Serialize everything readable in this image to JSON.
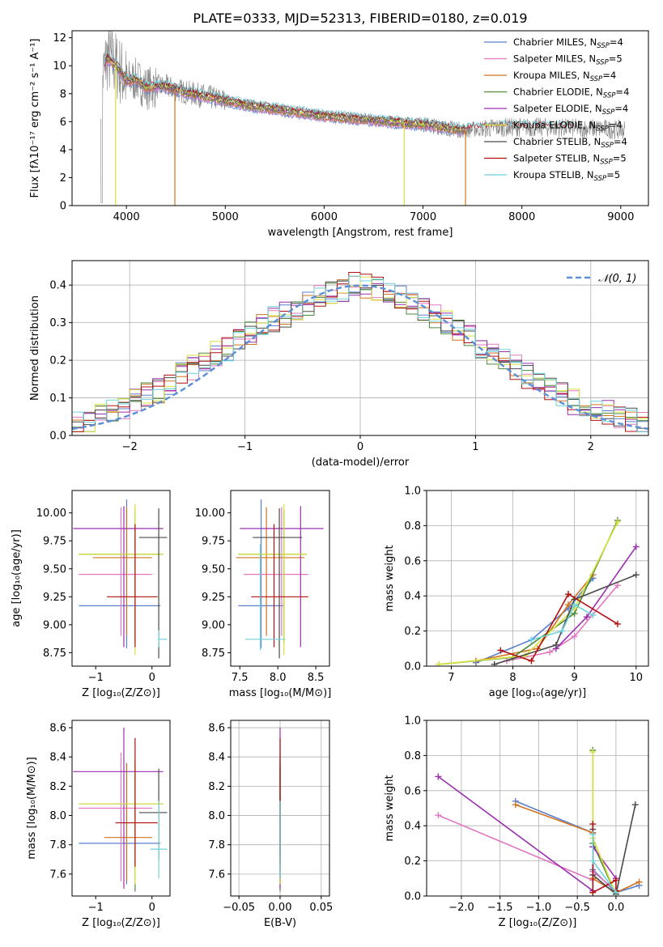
{
  "title": "PLATE=0333, MJD=52313, FIBERID=0180, z=0.019",
  "colors": {
    "Chabrier MILES": "#5b7fcf",
    "Salpeter MILES": "#e377c2",
    "Kroupa MILES": "#d0741e",
    "Chabrier ELODIE": "#4c8a3a",
    "Salpeter ELODIE": "#9a2fb0",
    "Kroupa ELODIE": "#d8e23a",
    "Chabrier STELIB": "#4a4a4a",
    "Salpeter STELIB": "#b01010",
    "Kroupa STELIB": "#6ed2dc",
    "data": "#808080",
    "gauss": "#5b8fd6"
  },
  "chart_data": [
    {
      "id": "spectrum",
      "type": "line",
      "title": "PLATE=0333, MJD=52313, FIBERID=0180, z=0.019",
      "xlabel": "wavelength [Angstrom, rest frame]",
      "ylabel": "Flux [fλ10⁻¹⁷ erg cm⁻² s⁻¹ A⁻¹]",
      "xlim": [
        3450,
        9280
      ],
      "ylim": [
        0,
        12.5
      ],
      "xticks": [
        4000,
        5000,
        6000,
        7000,
        8000,
        9000
      ],
      "yticks": [
        0,
        2,
        4,
        6,
        8,
        10,
        12
      ],
      "legend_position": "top-right",
      "continuum": {
        "x": [
          3750,
          3800,
          3900,
          4000,
          4100,
          4200,
          4300,
          4400,
          4500,
          4600,
          4800,
          5000,
          5200,
          5500,
          6000,
          6500,
          6800,
          7000,
          7200,
          7400,
          7600,
          7800,
          8000,
          8200,
          8500,
          8800,
          9000
        ],
        "y": [
          8.8,
          10.6,
          10.0,
          8.9,
          9.0,
          8.4,
          8.5,
          8.5,
          8.3,
          8.1,
          7.8,
          7.5,
          7.2,
          6.9,
          6.4,
          6.1,
          5.9,
          5.8,
          5.6,
          5.4,
          5.5,
          5.6,
          5.6,
          5.6,
          5.55,
          5.5,
          5.4
        ]
      },
      "series": [
        {
          "name": "Chabrier MILES",
          "nssp": "4"
        },
        {
          "name": "Salpeter MILES",
          "nssp": "5"
        },
        {
          "name": "Kroupa MILES",
          "nssp": "4"
        },
        {
          "name": "Chabrier ELODIE",
          "nssp": "4"
        },
        {
          "name": "Salpeter ELODIE",
          "nssp": "4"
        },
        {
          "name": "Kroupa ELODIE",
          "nssp": "4"
        },
        {
          "name": "Chabrier STELIB",
          "nssp": "4"
        },
        {
          "name": "Salpeter STELIB",
          "nssp": "5"
        },
        {
          "name": "Kroupa STELIB",
          "nssp": "5"
        }
      ]
    },
    {
      "id": "residuals",
      "type": "line",
      "xlabel": "(data-model)/error",
      "ylabel": "Normed distribution",
      "xlim": [
        -2.5,
        2.5
      ],
      "ylim": [
        0,
        0.465
      ],
      "xticks": [
        -2,
        -1,
        0,
        1,
        2
      ],
      "yticks": [
        0.0,
        0.1,
        0.2,
        0.3,
        0.4
      ],
      "grid": true,
      "legend": "𝒩(0, 1)",
      "legend_position": "top-right",
      "bin_width": 0.1,
      "base_histogram": [
        0.03,
        0.04,
        0.05,
        0.06,
        0.07,
        0.09,
        0.11,
        0.12,
        0.14,
        0.16,
        0.18,
        0.2,
        0.22,
        0.23,
        0.25,
        0.27,
        0.29,
        0.31,
        0.32,
        0.34,
        0.35,
        0.37,
        0.38,
        0.39,
        0.4,
        0.4,
        0.39,
        0.38,
        0.37,
        0.35,
        0.34,
        0.32,
        0.3,
        0.28,
        0.26,
        0.24,
        0.22,
        0.2,
        0.18,
        0.16,
        0.14,
        0.12,
        0.11,
        0.09,
        0.08,
        0.07,
        0.06,
        0.05,
        0.04,
        0.035
      ]
    },
    {
      "id": "age-vs-z",
      "type": "scatter",
      "xlabel": "Z [log₁₀(Z/Z⊙)]",
      "ylabel": "age  [log₁₀(age/yr)]",
      "xlim": [
        -1.42,
        0.32
      ],
      "ylim": [
        8.63,
        10.2
      ],
      "xticks": [
        -1,
        0
      ],
      "yticks": [
        8.75,
        9.0,
        9.25,
        9.5,
        9.75,
        10.0
      ],
      "points": [
        {
          "series": "Chabrier MILES",
          "x": -0.45,
          "xerr": [
            0.85,
            0.6
          ],
          "y": 9.17,
          "yerr": [
            0.38,
            0.95
          ]
        },
        {
          "series": "Salpeter MILES",
          "x": -0.55,
          "xerr": [
            0.75,
            0.55
          ],
          "y": 9.45,
          "yerr": [
            0.55,
            0.6
          ]
        },
        {
          "series": "Kroupa MILES",
          "x": -0.45,
          "xerr": [
            0.6,
            0.45
          ],
          "y": 9.6,
          "yerr": [
            0.7,
            0.45
          ]
        },
        {
          "series": "Chabrier ELODIE",
          "x": -0.3,
          "xerr": [
            1.0,
            0.5
          ],
          "y": 9.63,
          "yerr": [
            0.8,
            0.4
          ]
        },
        {
          "series": "Salpeter ELODIE",
          "x": -0.5,
          "xerr": [
            0.9,
            0.7
          ],
          "y": 9.86,
          "yerr": [
            1.06,
            0.2
          ]
        },
        {
          "series": "Kroupa ELODIE",
          "x": -0.3,
          "xerr": [
            1.0,
            0.5
          ],
          "y": 9.63,
          "yerr": [
            0.9,
            0.45
          ]
        },
        {
          "series": "Chabrier STELIB",
          "x": 0.12,
          "xerr": [
            0.35,
            0.15
          ],
          "y": 9.78,
          "yerr": [
            1.08,
            0.26
          ]
        },
        {
          "series": "Salpeter STELIB",
          "x": -0.3,
          "xerr": [
            0.5,
            0.4
          ],
          "y": 9.25,
          "yerr": [
            0.45,
            0.65
          ]
        },
        {
          "series": "Kroupa STELIB",
          "x": 0.12,
          "xerr": [
            0.0,
            0.15
          ],
          "y": 8.87,
          "yerr": [
            0.07,
            0.08
          ]
        }
      ]
    },
    {
      "id": "age-vs-mass",
      "type": "scatter",
      "xlabel": "mass [log₁₀(M/M⊙)]",
      "xlim": [
        7.38,
        8.68
      ],
      "ylim": [
        8.63,
        10.2
      ],
      "xticks": [
        7.5,
        8.0,
        8.5
      ],
      "yticks": [
        8.75,
        9.0,
        9.25,
        9.5,
        9.75,
        10.0
      ],
      "points": [
        {
          "series": "Chabrier MILES",
          "x": 7.78,
          "xerr": [
            0.3,
            0.3
          ],
          "y": 9.17,
          "yerr": [
            0.38,
            0.95
          ]
        },
        {
          "series": "Salpeter MILES",
          "x": 8.05,
          "xerr": [
            0.5,
            0.35
          ],
          "y": 9.45,
          "yerr": [
            0.55,
            0.6
          ]
        },
        {
          "series": "Kroupa MILES",
          "x": 7.85,
          "xerr": [
            0.4,
            0.5
          ],
          "y": 9.6,
          "yerr": [
            0.7,
            0.45
          ]
        },
        {
          "series": "Chabrier ELODIE",
          "x": 8.08,
          "xerr": [
            0.6,
            0.3
          ],
          "y": 9.63,
          "yerr": [
            0.8,
            0.4
          ]
        },
        {
          "series": "Salpeter ELODIE",
          "x": 8.3,
          "xerr": [
            0.8,
            0.3
          ],
          "y": 9.86,
          "yerr": [
            1.06,
            0.2
          ]
        },
        {
          "series": "Kroupa ELODIE",
          "x": 8.08,
          "xerr": [
            0.6,
            0.3
          ],
          "y": 9.63,
          "yerr": [
            0.9,
            0.45
          ]
        },
        {
          "series": "Chabrier STELIB",
          "x": 8.02,
          "xerr": [
            0.35,
            0.3
          ],
          "y": 9.78,
          "yerr": [
            1.08,
            0.26
          ]
        },
        {
          "series": "Salpeter STELIB",
          "x": 7.95,
          "xerr": [
            0.3,
            0.45
          ],
          "y": 9.25,
          "yerr": [
            0.45,
            0.65
          ]
        },
        {
          "series": "Kroupa STELIB",
          "x": 7.77,
          "xerr": [
            0.2,
            0.33
          ],
          "y": 8.87,
          "yerr": [
            0.1,
            0.85
          ]
        }
      ]
    },
    {
      "id": "weight-vs-age",
      "type": "line",
      "xlabel": "age  [log₁₀(age/yr)]",
      "ylabel": "mass weight",
      "xlim": [
        6.6,
        10.2
      ],
      "ylim": [
        0,
        1.0
      ],
      "xticks": [
        7,
        8,
        9,
        10
      ],
      "yticks": [
        0.0,
        0.2,
        0.4,
        0.6,
        0.8,
        1.0
      ],
      "grid": true,
      "series": [
        {
          "name": "Chabrier MILES",
          "x": [
            7.4,
            8.3,
            8.9,
            9.3
          ],
          "y": [
            0.02,
            0.15,
            0.33,
            0.5
          ]
        },
        {
          "name": "Salpeter MILES",
          "x": [
            7.9,
            8.6,
            9.0,
            9.7
          ],
          "y": [
            0.03,
            0.08,
            0.17,
            0.46
          ]
        },
        {
          "name": "Kroupa MILES",
          "x": [
            7.4,
            8.4,
            8.9,
            9.3
          ],
          "y": [
            0.03,
            0.1,
            0.35,
            0.52
          ]
        },
        {
          "name": "Chabrier ELODIE",
          "x": [
            6.8,
            8.0,
            9.0,
            9.7
          ],
          "y": [
            0.01,
            0.05,
            0.3,
            0.83
          ]
        },
        {
          "name": "Salpeter ELODIE",
          "x": [
            8.7,
            9.2,
            10.0
          ],
          "y": [
            0.1,
            0.28,
            0.68
          ]
        },
        {
          "name": "Kroupa ELODIE",
          "x": [
            6.8,
            8.2,
            9.0,
            9.7
          ],
          "y": [
            0.01,
            0.06,
            0.33,
            0.82
          ]
        },
        {
          "name": "Chabrier STELIB",
          "x": [
            7.7,
            8.7,
            9.0,
            10.0
          ],
          "y": [
            0.01,
            0.12,
            0.38,
            0.52
          ]
        },
        {
          "name": "Salpeter STELIB",
          "x": [
            7.8,
            8.3,
            8.9,
            9.7
          ],
          "y": [
            0.09,
            0.03,
            0.41,
            0.24
          ]
        },
        {
          "name": "Kroupa STELIB",
          "x": [
            8.3,
            8.8,
            9.0,
            9.3
          ],
          "y": [
            0.15,
            0.2,
            0.35,
            0.29
          ]
        }
      ]
    },
    {
      "id": "mass-vs-z",
      "type": "scatter",
      "xlabel": "Z [log₁₀(Z/Z⊙)]",
      "ylabel": "mass [log₁₀(M/M⊙)]",
      "xlim": [
        -1.42,
        0.32
      ],
      "ylim": [
        7.45,
        8.65
      ],
      "xticks": [
        -1,
        0
      ],
      "yticks": [
        7.6,
        7.8,
        8.0,
        8.2,
        8.4,
        8.6
      ],
      "points": [
        {
          "series": "Chabrier MILES",
          "x": -0.45,
          "xerr": [
            0.85,
            0.6
          ],
          "y": 7.81,
          "yerr": [
            0.28,
            0.55
          ]
        },
        {
          "series": "Salpeter MILES",
          "x": -0.55,
          "xerr": [
            0.75,
            0.55
          ],
          "y": 8.05,
          "yerr": [
            0.5,
            0.38
          ]
        },
        {
          "series": "Kroupa MILES",
          "x": -0.45,
          "xerr": [
            0.4,
            0.45
          ],
          "y": 7.85,
          "yerr": [
            0.3,
            0.5
          ]
        },
        {
          "series": "Chabrier ELODIE",
          "x": -0.3,
          "xerr": [
            1.0,
            0.5
          ],
          "y": 8.08,
          "yerr": [
            0.6,
            0.3
          ]
        },
        {
          "series": "Salpeter ELODIE",
          "x": -0.5,
          "xerr": [
            0.9,
            0.7
          ],
          "y": 8.3,
          "yerr": [
            0.8,
            0.3
          ]
        },
        {
          "series": "Kroupa ELODIE",
          "x": -0.3,
          "xerr": [
            1.0,
            0.5
          ],
          "y": 8.08,
          "yerr": [
            0.55,
            0.3
          ]
        },
        {
          "series": "Chabrier STELIB",
          "x": 0.12,
          "xerr": [
            0.35,
            0.15
          ],
          "y": 8.02,
          "yerr": [
            0.32,
            0.3
          ]
        },
        {
          "series": "Salpeter STELIB",
          "x": -0.3,
          "xerr": [
            0.35,
            0.4
          ],
          "y": 7.95,
          "yerr": [
            0.3,
            0.58
          ]
        },
        {
          "series": "Kroupa STELIB",
          "x": 0.12,
          "xerr": [
            0.15,
            0.15
          ],
          "y": 7.77,
          "yerr": [
            0.2,
            0.33
          ]
        }
      ]
    },
    {
      "id": "mass-vs-ebv",
      "type": "scatter",
      "xlabel": "E(B-V)",
      "xlim": [
        -0.06,
        0.06
      ],
      "ylim": [
        7.45,
        8.65
      ],
      "xticks": [
        -0.05,
        0.0,
        0.05
      ],
      "yticks": [
        7.6,
        7.8,
        8.0,
        8.2,
        8.4,
        8.6
      ],
      "grid": true,
      "points": [
        {
          "series": "Chabrier MILES",
          "x": 0.0,
          "y": 7.81,
          "yerr": [
            0.28,
            0.55
          ]
        },
        {
          "series": "Salpeter MILES",
          "x": 0.0,
          "y": 8.05,
          "yerr": [
            0.5,
            0.38
          ]
        },
        {
          "series": "Kroupa MILES",
          "x": 0.0,
          "y": 7.85,
          "yerr": [
            0.3,
            0.5
          ]
        },
        {
          "series": "Chabrier ELODIE",
          "x": 0.0,
          "y": 8.08,
          "yerr": [
            0.6,
            0.3
          ]
        },
        {
          "series": "Salpeter ELODIE",
          "x": 0.0,
          "y": 8.3,
          "yerr": [
            0.8,
            0.3
          ]
        },
        {
          "series": "Kroupa ELODIE",
          "x": 0.0,
          "y": 8.08,
          "yerr": [
            0.55,
            0.3
          ]
        },
        {
          "series": "Chabrier STELIB",
          "x": 0.0,
          "y": 8.02,
          "yerr": [
            0.32,
            0.3
          ]
        },
        {
          "series": "Salpeter STELIB",
          "x": 0.0,
          "y": 7.95,
          "yerr": [
            0.3,
            0.58
          ]
        },
        {
          "series": "Kroupa STELIB",
          "x": 0.0,
          "y": 7.77,
          "yerr": [
            0.2,
            0.33
          ]
        }
      ]
    },
    {
      "id": "weight-vs-z",
      "type": "line",
      "xlabel": "Z [log₁₀(Z/Z⊙)]",
      "ylabel": "mass weight",
      "xlim": [
        -2.45,
        0.42
      ],
      "ylim": [
        0,
        1.0
      ],
      "xticks": [
        -2.0,
        -1.5,
        -1.0,
        -0.5,
        0.0
      ],
      "yticks": [
        0.0,
        0.2,
        0.4,
        0.6,
        0.8,
        1.0
      ],
      "grid": true,
      "series": [
        {
          "name": "Chabrier MILES",
          "x": [
            -1.3,
            -0.3,
            -0.3,
            0.0,
            0.3
          ],
          "y": [
            0.54,
            0.36,
            0.15,
            0.02,
            0.06
          ]
        },
        {
          "name": "Salpeter MILES",
          "x": [
            -2.3,
            -0.3,
            -0.3,
            0.0
          ],
          "y": [
            0.46,
            0.09,
            0.14,
            0.03
          ]
        },
        {
          "name": "Kroupa MILES",
          "x": [
            -1.3,
            -0.3,
            -0.3,
            0.0,
            0.3
          ],
          "y": [
            0.52,
            0.36,
            0.1,
            0.02,
            0.08
          ]
        },
        {
          "name": "Chabrier ELODIE",
          "x": [
            -0.3,
            -0.3,
            0.0
          ],
          "y": [
            0.83,
            0.3,
            0.01
          ]
        },
        {
          "name": "Salpeter ELODIE",
          "x": [
            -2.3,
            -0.3,
            -0.3,
            0.0
          ],
          "y": [
            0.68,
            0.03,
            0.28,
            0.1
          ]
        },
        {
          "name": "Kroupa ELODIE",
          "x": [
            -0.3,
            -0.3,
            0.0
          ],
          "y": [
            0.82,
            0.33,
            0.01
          ]
        },
        {
          "name": "Chabrier STELIB",
          "x": [
            -0.3,
            -0.3,
            0.0,
            0.25
          ],
          "y": [
            0.38,
            0.12,
            0.01,
            0.52
          ]
        },
        {
          "name": "Salpeter STELIB",
          "x": [
            -0.3,
            -0.3,
            0.0,
            0.0
          ],
          "y": [
            0.41,
            0.02,
            0.09,
            0.03
          ]
        },
        {
          "name": "Kroupa STELIB",
          "x": [
            -0.3,
            -0.3,
            0.0
          ],
          "y": [
            0.35,
            0.2,
            0.02
          ]
        }
      ]
    }
  ]
}
